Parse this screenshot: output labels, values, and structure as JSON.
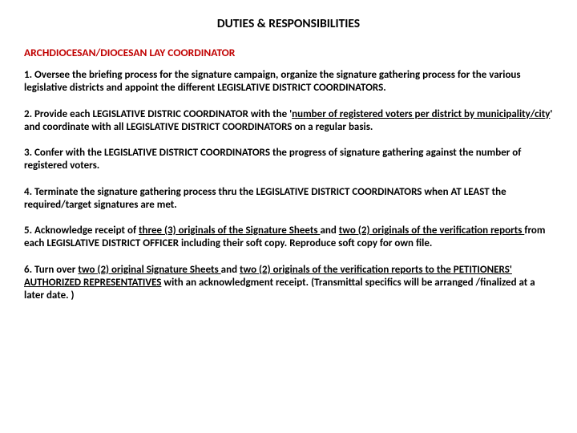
{
  "title": "DUTIES & RESPONSIBILITIES",
  "subtitle": "ARCHDIOCESAN/DIOCESAN LAY COORDINATOR",
  "p1_a": "1.  Oversee the briefing process for the signature campaign, organize the signature gathering process for the various legislative districts and appoint the different LEGISLATIVE DISTRICT COORDINATORS.",
  "p2_a": "2.  Provide each LEGISLATIVE DISTRIC COORDINATOR with the '",
  "p2_u1": "number of registered voters per district by municipality/city",
  "p2_b": "' and coordinate with all LEGISLATIVE DISTRICT COORDINATORS on a regular basis.",
  "p3_a": "3. Confer with the LEGISLATIVE DISTRICT COORDINATORS the progress of signature gathering against the number of registered voters.",
  "p4_a": "4.  Terminate the signature gathering process thru the LEGISLATIVE DISTRICT COORDINATORS when AT LEAST the required/target signatures are met.",
  "p5_a": "5.  Acknowledge receipt of ",
  "p5_u1": "three (3) originals of the Signature Sheets ",
  "p5_b": " and ",
  "p5_u2": "two (2) originals  of the verification reports ",
  "p5_c": " from each LEGISLATIVE DISTRICT OFFICER including their soft copy. Reproduce soft copy for own file.",
  "p6_a": "6.  Turn over  ",
  "p6_u1": "two (2) original Signature Sheets ",
  "p6_b": "and ",
  "p6_u2": "two (2) originals of the verification reports to the PETITIONERS' AUTHORIZED REPRESENTATIVES",
  "p6_c": " with an acknowledgment receipt. (Transmittal specifics will be arranged /finalized at a later date. )",
  "colors": {
    "subtitle": "#c00000",
    "text": "#000000",
    "background": "#ffffff"
  },
  "fonts": {
    "title_size_pt": 15.5,
    "subtitle_size_pt": 13.5,
    "body_size_pt": 13,
    "weight": "bold",
    "family": "Calibri"
  }
}
